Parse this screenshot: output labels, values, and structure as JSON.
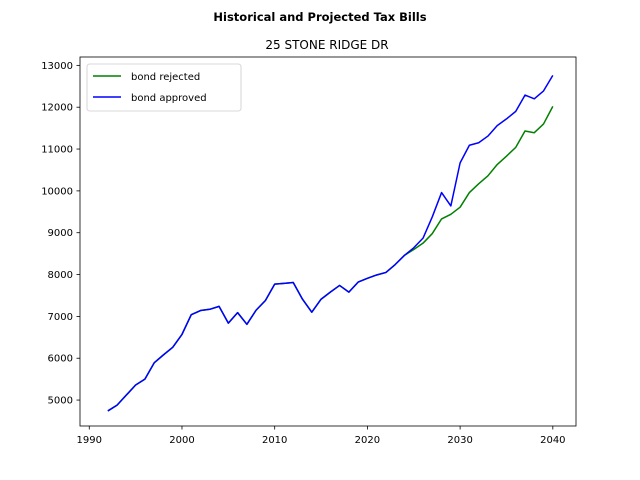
{
  "chart_data": {
    "type": "line",
    "title": "Historical and Projected Tax Bills",
    "subtitle": "25 STONE RIDGE DR",
    "xlabel": "",
    "ylabel": "",
    "xlim": [
      1989,
      2042.5
    ],
    "ylim": [
      4380,
      13200
    ],
    "xticks": [
      1990,
      2000,
      2010,
      2020,
      2030,
      2040
    ],
    "yticks": [
      5000,
      6000,
      7000,
      8000,
      9000,
      10000,
      11000,
      12000,
      13000
    ],
    "grid": false,
    "legend_position": "upper-left",
    "series": [
      {
        "name": "bond rejected",
        "color": "#008000",
        "x": [
          1992,
          1993,
          1994,
          1995,
          1996,
          1997,
          1998,
          1999,
          2000,
          2001,
          2002,
          2003,
          2004,
          2005,
          2006,
          2007,
          2008,
          2009,
          2010,
          2011,
          2012,
          2013,
          2014,
          2015,
          2016,
          2017,
          2018,
          2019,
          2020,
          2021,
          2022,
          2023,
          2024,
          2025,
          2026,
          2027,
          2028,
          2029,
          2030,
          2031,
          2032,
          2033,
          2034,
          2035,
          2036,
          2037,
          2038,
          2039,
          2040
        ],
        "y": [
          4740,
          4880,
          5120,
          5360,
          5500,
          5890,
          6080,
          6260,
          6570,
          7040,
          7140,
          7170,
          7240,
          6840,
          7090,
          6810,
          7150,
          7380,
          7770,
          7790,
          7810,
          7410,
          7100,
          7410,
          7580,
          7740,
          7580,
          7820,
          7910,
          7990,
          8050,
          8240,
          8460,
          8600,
          8750,
          8980,
          9330,
          9440,
          9610,
          9960,
          10170,
          10360,
          10630,
          10830,
          11040,
          11430,
          11390,
          11600,
          12020
        ]
      },
      {
        "name": "bond approved",
        "color": "#0000ff",
        "x": [
          1992,
          1993,
          1994,
          1995,
          1996,
          1997,
          1998,
          1999,
          2000,
          2001,
          2002,
          2003,
          2004,
          2005,
          2006,
          2007,
          2008,
          2009,
          2010,
          2011,
          2012,
          2013,
          2014,
          2015,
          2016,
          2017,
          2018,
          2019,
          2020,
          2021,
          2022,
          2023,
          2024,
          2025,
          2026,
          2027,
          2028,
          2029,
          2030,
          2031,
          2032,
          2033,
          2034,
          2035,
          2036,
          2037,
          2038,
          2039,
          2040
        ],
        "y": [
          4740,
          4880,
          5120,
          5360,
          5500,
          5890,
          6080,
          6260,
          6570,
          7040,
          7140,
          7170,
          7240,
          6840,
          7090,
          6810,
          7150,
          7380,
          7770,
          7790,
          7810,
          7410,
          7100,
          7410,
          7580,
          7740,
          7580,
          7820,
          7910,
          7990,
          8050,
          8240,
          8460,
          8640,
          8870,
          9380,
          9960,
          9640,
          10670,
          11090,
          11150,
          11310,
          11560,
          11720,
          11900,
          12290,
          12200,
          12390,
          12760
        ]
      }
    ]
  }
}
